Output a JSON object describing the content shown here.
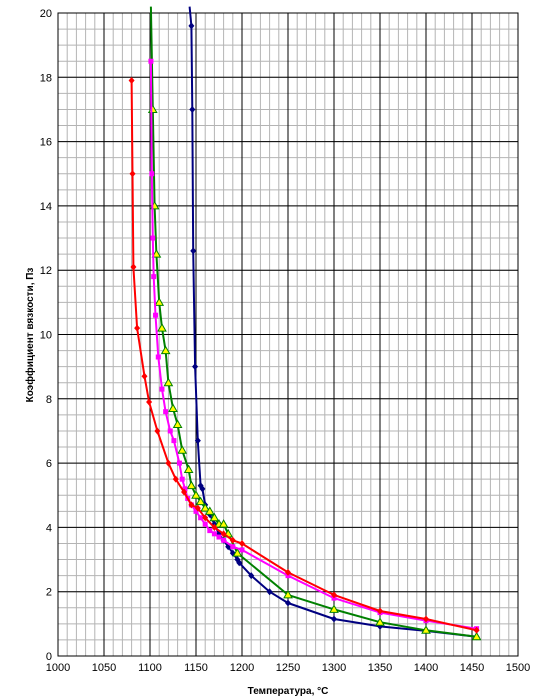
{
  "chart_data": {
    "type": "line",
    "title": "",
    "xlabel": "Температура, °С",
    "ylabel": "Коэффициент вязкости, Пз",
    "xlim": [
      1000,
      1500
    ],
    "ylim": [
      0,
      20
    ],
    "xticks": [
      1000,
      1050,
      1100,
      1150,
      1200,
      1250,
      1300,
      1350,
      1400,
      1450,
      1500
    ],
    "yticks": [
      0,
      2,
      4,
      6,
      8,
      10,
      12,
      14,
      16,
      18,
      20
    ],
    "x_minor_step": 10,
    "y_minor_step": 0.5,
    "grid": true,
    "legend": "none",
    "series": [
      {
        "color": "#000080",
        "marker": "diamond",
        "values": [
          [
            1143,
            20.2
          ],
          [
            1145,
            19.6
          ],
          [
            1146,
            17
          ],
          [
            1147,
            12.6
          ],
          [
            1149,
            9
          ],
          [
            1152,
            6.7
          ],
          [
            1155,
            5.3
          ],
          [
            1157,
            5.2
          ],
          [
            1160,
            4.7
          ],
          [
            1165,
            4.4
          ],
          [
            1170,
            4.1
          ],
          [
            1175,
            3.8
          ],
          [
            1180,
            3.6
          ],
          [
            1185,
            3.4
          ],
          [
            1190,
            3.2
          ],
          [
            1195,
            3.0
          ],
          [
            1197,
            2.9
          ],
          [
            1210,
            2.5
          ],
          [
            1230,
            2.0
          ],
          [
            1250,
            1.65
          ],
          [
            1300,
            1.15
          ],
          [
            1350,
            0.92
          ],
          [
            1400,
            0.78
          ],
          [
            1455,
            0.6
          ]
        ]
      },
      {
        "color": "#008000",
        "marker": "triangle",
        "values": [
          [
            1101,
            20.2
          ],
          [
            1103,
            17
          ],
          [
            1105,
            14
          ],
          [
            1107,
            12.5
          ],
          [
            1110,
            11
          ],
          [
            1113,
            10.2
          ],
          [
            1117,
            9.5
          ],
          [
            1120,
            8.5
          ],
          [
            1125,
            7.7
          ],
          [
            1130,
            7.2
          ],
          [
            1135,
            6.4
          ],
          [
            1142,
            5.8
          ],
          [
            1145,
            5.3
          ],
          [
            1150,
            5.0
          ],
          [
            1155,
            4.8
          ],
          [
            1160,
            4.6
          ],
          [
            1165,
            4.5
          ],
          [
            1170,
            4.3
          ],
          [
            1175,
            4.1
          ],
          [
            1180,
            4.1
          ],
          [
            1185,
            3.8
          ],
          [
            1195,
            3.2
          ],
          [
            1250,
            1.9
          ],
          [
            1300,
            1.45
          ],
          [
            1350,
            1.05
          ],
          [
            1400,
            0.8
          ],
          [
            1455,
            0.6
          ]
        ]
      },
      {
        "color": "#FF00FF",
        "marker": "square",
        "values": [
          [
            1101,
            18.5
          ],
          [
            1102,
            15
          ],
          [
            1103,
            13
          ],
          [
            1104,
            11.8
          ],
          [
            1106,
            10.6
          ],
          [
            1109,
            9.3
          ],
          [
            1113,
            8.3
          ],
          [
            1117,
            7.6
          ],
          [
            1122,
            7.0
          ],
          [
            1126,
            6.7
          ],
          [
            1132,
            6.0
          ],
          [
            1135,
            5.5
          ],
          [
            1138,
            5.2
          ],
          [
            1141,
            4.9
          ],
          [
            1145,
            4.7
          ],
          [
            1150,
            4.5
          ],
          [
            1155,
            4.3
          ],
          [
            1160,
            4.1
          ],
          [
            1165,
            3.9
          ],
          [
            1170,
            3.8
          ],
          [
            1175,
            3.7
          ],
          [
            1180,
            3.6
          ],
          [
            1190,
            3.4
          ],
          [
            1200,
            3.3
          ],
          [
            1250,
            2.5
          ],
          [
            1300,
            1.8
          ],
          [
            1350,
            1.35
          ],
          [
            1400,
            1.1
          ],
          [
            1455,
            0.85
          ]
        ]
      },
      {
        "color": "#FF0000",
        "marker": "diamond",
        "values": [
          [
            1080,
            17.9
          ],
          [
            1081,
            15
          ],
          [
            1082,
            12.1
          ],
          [
            1086,
            10.2
          ],
          [
            1094,
            8.7
          ],
          [
            1099,
            7.9
          ],
          [
            1108,
            7.0
          ],
          [
            1120,
            6.0
          ],
          [
            1128,
            5.5
          ],
          [
            1137,
            5.1
          ],
          [
            1145,
            4.7
          ],
          [
            1152,
            4.6
          ],
          [
            1160,
            4.3
          ],
          [
            1170,
            4.0
          ],
          [
            1180,
            3.8
          ],
          [
            1190,
            3.6
          ],
          [
            1200,
            3.5
          ],
          [
            1250,
            2.6
          ],
          [
            1300,
            1.9
          ],
          [
            1350,
            1.4
          ],
          [
            1400,
            1.15
          ],
          [
            1455,
            0.8
          ]
        ]
      }
    ]
  }
}
